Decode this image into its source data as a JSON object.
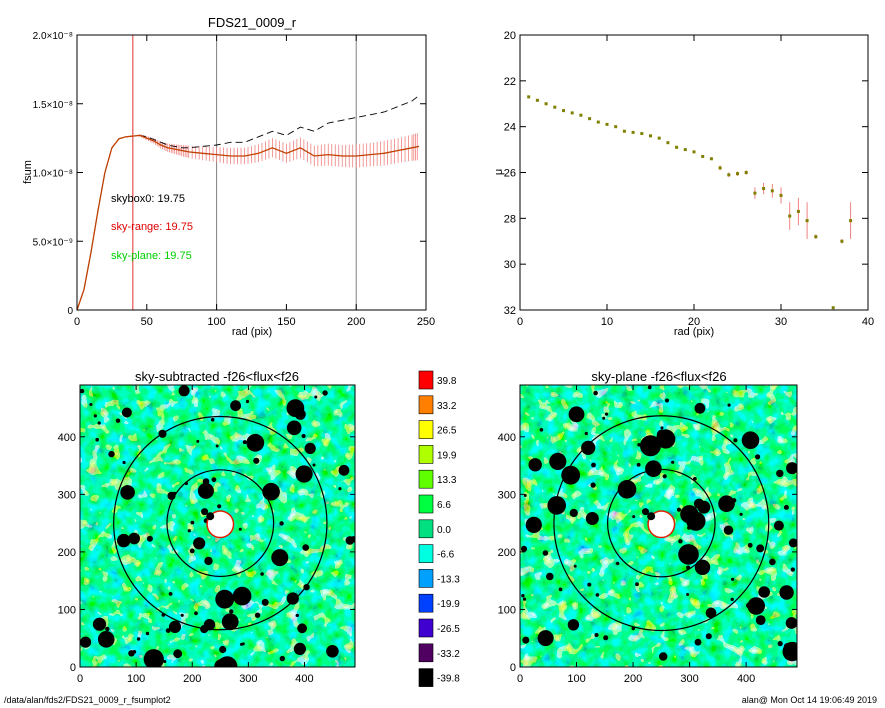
{
  "figure": {
    "footer_left": "/data/alan/fds2/FDS21_0009_r_fsumplot2",
    "footer_right": "alan@  Mon Oct 14 19:06:49 2019"
  },
  "chart_data": [
    {
      "id": "fsum",
      "type": "line",
      "title": "FDS21_0009_r",
      "xlabel": "rad (pix)",
      "ylabel": "fsum",
      "xlim": [
        0,
        250
      ],
      "ylim": [
        0,
        2e-08
      ],
      "xticks": [
        0,
        50,
        100,
        150,
        200,
        250
      ],
      "xtick_labels": [
        "0",
        "50",
        "100",
        "150",
        "200",
        "250"
      ],
      "yticks": [
        0,
        5e-09,
        1e-08,
        1.5e-08,
        2e-08
      ],
      "ytick_labels": [
        "0",
        "5.0×10⁻⁹",
        "1.0×10⁻⁸",
        "1.5×10⁻⁸",
        "2.0×10⁻⁸"
      ],
      "vlines": [
        {
          "x": 40,
          "color": "#e03030"
        },
        {
          "x": 100,
          "color": "#808080"
        },
        {
          "x": 200,
          "color": "#808080"
        }
      ],
      "annotations": [
        {
          "text": "skybox0: 19.75",
          "color": "#000000"
        },
        {
          "text": "sky-range: 19.75",
          "color": "#e00000"
        },
        {
          "text": "sky-plane: 19.75",
          "color": "#00d000"
        }
      ],
      "series": [
        {
          "style": "dashed",
          "color": "#000000",
          "x": [
            0,
            5,
            10,
            15,
            20,
            25,
            30,
            35,
            40,
            45,
            50,
            55,
            60,
            65,
            70,
            75,
            80,
            90,
            100,
            110,
            120,
            130,
            140,
            150,
            160,
            170,
            180,
            190,
            200,
            210,
            220,
            230,
            240,
            245
          ],
          "y": [
            0,
            1.5e-09,
            4.2e-09,
            7.2e-09,
            1e-08,
            1.18e-08,
            1.245e-08,
            1.26e-08,
            1.265e-08,
            1.27e-08,
            1.26e-08,
            1.24e-08,
            1.22e-08,
            1.2e-08,
            1.19e-08,
            1.18e-08,
            1.18e-08,
            1.19e-08,
            1.2e-08,
            1.22e-08,
            1.22e-08,
            1.26e-08,
            1.3e-08,
            1.27e-08,
            1.33e-08,
            1.3e-08,
            1.36e-08,
            1.38e-08,
            1.4e-08,
            1.42e-08,
            1.44e-08,
            1.48e-08,
            1.52e-08,
            1.56e-08
          ]
        },
        {
          "style": "solid",
          "color": "#c04000",
          "errorbar_color": "#f08080",
          "x": [
            0,
            5,
            10,
            15,
            20,
            25,
            30,
            35,
            40,
            45,
            50,
            55,
            60,
            65,
            70,
            75,
            80,
            90,
            100,
            110,
            120,
            130,
            140,
            150,
            160,
            170,
            180,
            190,
            200,
            210,
            220,
            230,
            240,
            245
          ],
          "y": [
            0,
            1.5e-09,
            4.2e-09,
            7.2e-09,
            1e-08,
            1.18e-08,
            1.245e-08,
            1.26e-08,
            1.265e-08,
            1.27e-08,
            1.25e-08,
            1.23e-08,
            1.2e-08,
            1.18e-08,
            1.17e-08,
            1.16e-08,
            1.15e-08,
            1.14e-08,
            1.13e-08,
            1.12e-08,
            1.12e-08,
            1.14e-08,
            1.18e-08,
            1.14e-08,
            1.18e-08,
            1.12e-08,
            1.13e-08,
            1.12e-08,
            1.12e-08,
            1.13e-08,
            1.14e-08,
            1.16e-08,
            1.18e-08,
            1.19e-08
          ],
          "err": [
            0,
            0,
            0,
            0,
            0,
            0,
            0,
            0,
            0,
            1e-10,
            1.5e-10,
            2e-10,
            2.5e-10,
            3e-10,
            3.5e-10,
            4e-10,
            4.5e-10,
            5e-10,
            5.5e-10,
            6e-10,
            6e-10,
            6.5e-10,
            7e-10,
            7e-10,
            7.5e-10,
            7.5e-10,
            8e-10,
            8e-10,
            8.5e-10,
            8.5e-10,
            9e-10,
            9e-10,
            9.5e-10,
            1e-09
          ]
        }
      ]
    },
    {
      "id": "mu",
      "type": "scatter",
      "title": "",
      "xlabel": "rad (pix)",
      "ylabel": "μ",
      "xlim": [
        0,
        40
      ],
      "ylim": [
        32,
        20
      ],
      "xticks": [
        0,
        10,
        20,
        30,
        40
      ],
      "yticks": [
        20,
        22,
        24,
        26,
        28,
        30,
        32
      ],
      "marker_color": "#808000",
      "errorbar_color": "#f08080",
      "points": [
        {
          "x": 1,
          "y": 22.7,
          "err": 0
        },
        {
          "x": 2,
          "y": 22.85,
          "err": 0
        },
        {
          "x": 3,
          "y": 23.0,
          "err": 0
        },
        {
          "x": 4,
          "y": 23.15,
          "err": 0
        },
        {
          "x": 5,
          "y": 23.3,
          "err": 0
        },
        {
          "x": 6,
          "y": 23.4,
          "err": 0
        },
        {
          "x": 7,
          "y": 23.5,
          "err": 0
        },
        {
          "x": 8,
          "y": 23.65,
          "err": 0
        },
        {
          "x": 9,
          "y": 23.8,
          "err": 0
        },
        {
          "x": 10,
          "y": 23.9,
          "err": 0
        },
        {
          "x": 11,
          "y": 24.0,
          "err": 0
        },
        {
          "x": 12,
          "y": 24.2,
          "err": 0
        },
        {
          "x": 13,
          "y": 24.25,
          "err": 0
        },
        {
          "x": 14,
          "y": 24.3,
          "err": 0
        },
        {
          "x": 15,
          "y": 24.4,
          "err": 0
        },
        {
          "x": 16,
          "y": 24.5,
          "err": 0
        },
        {
          "x": 17,
          "y": 24.7,
          "err": 0
        },
        {
          "x": 18,
          "y": 24.9,
          "err": 0
        },
        {
          "x": 19,
          "y": 25.0,
          "err": 0
        },
        {
          "x": 20,
          "y": 25.1,
          "err": 0
        },
        {
          "x": 21,
          "y": 25.3,
          "err": 0
        },
        {
          "x": 22,
          "y": 25.4,
          "err": 0
        },
        {
          "x": 23,
          "y": 25.8,
          "err": 0.1
        },
        {
          "x": 24,
          "y": 26.1,
          "err": 0.1
        },
        {
          "x": 25,
          "y": 26.05,
          "err": 0.1
        },
        {
          "x": 26,
          "y": 26.0,
          "err": 0.1
        },
        {
          "x": 27,
          "y": 26.9,
          "err": 0.25
        },
        {
          "x": 28,
          "y": 26.7,
          "err": 0.25
        },
        {
          "x": 29,
          "y": 26.8,
          "err": 0.3
        },
        {
          "x": 30,
          "y": 27.0,
          "err": 0.35
        },
        {
          "x": 31,
          "y": 27.9,
          "err": 0.6
        },
        {
          "x": 32,
          "y": 27.7,
          "err": 0.6
        },
        {
          "x": 33,
          "y": 28.1,
          "err": 0.8
        },
        {
          "x": 34,
          "y": 28.8,
          "err": 0.1
        },
        {
          "x": 36,
          "y": 31.9,
          "err": 0
        },
        {
          "x": 37,
          "y": 29.0,
          "err": 0.1
        },
        {
          "x": 38,
          "y": 28.1,
          "err": 0.8
        }
      ]
    },
    {
      "id": "sky-subtracted",
      "type": "heatmap",
      "title": "sky-subtracted -f26<flux<f26",
      "xlim": [
        0,
        490
      ],
      "ylim": [
        0,
        490
      ],
      "xticks": [
        0,
        100,
        200,
        300,
        400
      ],
      "yticks": [
        0,
        100,
        200,
        300,
        400
      ],
      "circles": [
        {
          "cx": 250,
          "cy": 250,
          "r": 95
        },
        {
          "cx": 250,
          "cy": 250,
          "r": 190
        }
      ]
    },
    {
      "id": "colorbar",
      "type": "heatmap",
      "levels": [
        {
          "label": "39.8",
          "color": "#ff0000"
        },
        {
          "label": "33.2",
          "color": "#ff8000"
        },
        {
          "label": "26.5",
          "color": "#ffff00"
        },
        {
          "label": "19.9",
          "color": "#b0ff00"
        },
        {
          "label": "13.3",
          "color": "#60ff00"
        },
        {
          "label": "6.6",
          "color": "#00ff40"
        },
        {
          "label": "0.0",
          "color": "#00e080"
        },
        {
          "label": "-6.6",
          "color": "#00ffe0"
        },
        {
          "label": "-13.3",
          "color": "#00a0ff"
        },
        {
          "label": "-19.9",
          "color": "#0040ff"
        },
        {
          "label": "-26.5",
          "color": "#4000d0"
        },
        {
          "label": "-33.2",
          "color": "#500060"
        },
        {
          "label": "-39.8",
          "color": "#000000"
        }
      ]
    },
    {
      "id": "sky-plane",
      "type": "heatmap",
      "title": "sky-plane -f26<flux<f26",
      "xlim": [
        0,
        490
      ],
      "ylim": [
        0,
        490
      ],
      "xticks": [
        0,
        100,
        200,
        300,
        400
      ],
      "yticks": [
        0,
        100,
        200,
        300,
        400
      ],
      "circles": [
        {
          "cx": 250,
          "cy": 250,
          "r": 95
        },
        {
          "cx": 250,
          "cy": 250,
          "r": 190
        }
      ]
    }
  ]
}
